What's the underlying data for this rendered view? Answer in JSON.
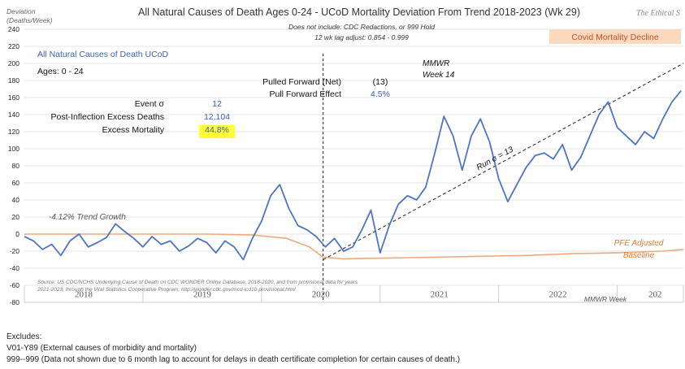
{
  "chart_data": {
    "type": "line",
    "title": "All Natural Causes of Death Ages 0-24 - UCoD Mortality Deviation From Trend  2018-2023 (Wk 29)",
    "subtitle_lines": [
      "Does not include: CDC Redactions, or 999 Hold",
      "12 wk lag adjust: 0.854 - 0.999"
    ],
    "watermark": "The Ethical S",
    "ylabel": "Deviation (Deaths/Week)",
    "ylim": [
      -80,
      240
    ],
    "yticks": [
      -80,
      -60,
      -40,
      -20,
      0,
      20,
      40,
      60,
      80,
      100,
      120,
      140,
      160,
      180,
      200,
      220,
      240
    ],
    "year_labels": [
      "2018",
      "2019",
      "2020",
      "2021",
      "2022",
      "202"
    ],
    "xaxis_caption": "MMWR Week",
    "x_range": [
      0,
      289
    ],
    "series": [
      {
        "name": "All Natural Causes of Death UCoD",
        "color": "#4f74c0",
        "x": [
          0,
          4,
          8,
          12,
          16,
          20,
          24,
          28,
          32,
          36,
          40,
          44,
          48,
          52,
          56,
          60,
          64,
          68,
          72,
          76,
          80,
          84,
          88,
          92,
          96,
          100,
          104,
          108,
          112,
          116,
          120,
          124,
          128,
          132,
          136,
          140,
          144,
          148,
          152,
          156,
          160,
          164,
          168,
          172,
          176,
          180,
          184,
          188,
          192,
          196,
          200,
          204,
          208,
          212,
          216,
          220,
          224,
          228,
          232,
          236,
          240,
          244,
          248,
          252,
          256,
          260,
          264,
          268,
          272,
          276,
          280,
          284,
          288
        ],
        "y": [
          -3,
          -8,
          -18,
          -12,
          -25,
          -8,
          0,
          -15,
          -10,
          -4,
          12,
          3,
          -5,
          -15,
          -3,
          -12,
          -8,
          -20,
          -14,
          -5,
          -10,
          -22,
          -8,
          -15,
          -30,
          -5,
          15,
          45,
          58,
          30,
          10,
          5,
          -3,
          -15,
          -5,
          -20,
          -15,
          5,
          28,
          -22,
          10,
          35,
          45,
          40,
          55,
          95,
          138,
          115,
          75,
          115,
          135,
          108,
          65,
          38,
          58,
          78,
          92,
          95,
          88,
          105,
          75,
          90,
          115,
          140,
          155,
          125,
          115,
          105,
          120,
          112,
          135,
          155,
          168
        ]
      }
    ],
    "baseline": {
      "label_line1": "PFE Adjusted",
      "label_line2": "Baseline",
      "color": "#f0a97c",
      "x": [
        0,
        40,
        80,
        100,
        115,
        125,
        131,
        140,
        160,
        180,
        200,
        220,
        240,
        260,
        280,
        289
      ],
      "y": [
        0,
        0,
        0,
        -1,
        -5,
        -15,
        -27,
        -29,
        -28,
        -27,
        -26,
        -25,
        -23,
        -22,
        -20,
        -18
      ]
    },
    "run_line": {
      "label": "Run σ = 13",
      "x": [
        131,
        289
      ],
      "y": [
        -30,
        200
      ]
    },
    "inflection": {
      "x": 131,
      "label_line1": "MMWR",
      "label_line2": "Week 14"
    },
    "legend_title": "All Natural Causes of Death UCoD",
    "ages_label": "Ages: 0 - 24",
    "stats": [
      {
        "label": "Event σ",
        "value": "12"
      },
      {
        "label": "Post-Inflection Excess Deaths",
        "value": "12,104"
      },
      {
        "label": "Excess Mortality",
        "value": "44.8%"
      }
    ],
    "pulled": [
      {
        "label": "Pulled Forward (Net)",
        "value": "(13)"
      },
      {
        "label": "Pull Forward Effect",
        "value": "4.5%"
      }
    ],
    "trend_label": "-4.12% Trend Growth",
    "covid_label": "Covid Mortality Decline",
    "source_line1": "Source: US CDC/NCHS Underlying Cause of Death on CDC WONDER Online Database, 2018-2020, and from provisional data for years",
    "source_line2": "2021-2023, through the Vital Statistics Cooperative Program; http://wonder.cdc.gov/mcd-icd10-provisional.html"
  },
  "notes": {
    "heading": "Excludes:",
    "line1": "V01-Y89 (External causes of morbidity and mortality)",
    "line2": "999--999 (Data not shown due to 6 month lag to account for delays in death certificate completion for certain causes of death.)"
  }
}
